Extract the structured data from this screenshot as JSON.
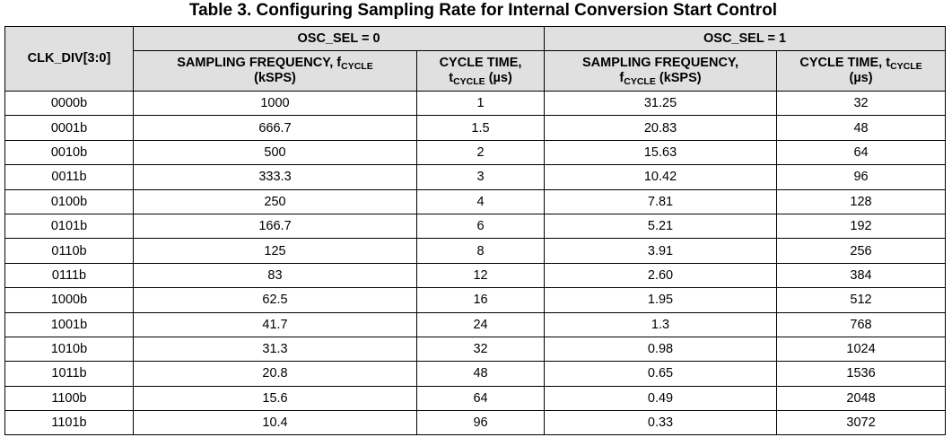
{
  "title": "Table 3. Configuring Sampling Rate for Internal Conversion Start Control",
  "headers": {
    "clk_div": "CLK_DIV[3:0]",
    "osc_sel_0": "OSC_SEL = 0",
    "osc_sel_1": "OSC_SEL = 1",
    "sub_cycle": "CYCLE",
    "osc0_freq_pre": "SAMPLING FREQUENCY, f",
    "osc0_freq_post": "(kSPS)",
    "osc0_time_pre": "CYCLE TIME,",
    "osc0_time_t": "t",
    "osc0_time_post": " (µs)",
    "osc1_freq_pre": "SAMPLING FREQUENCY,",
    "osc1_freq_f": "f",
    "osc1_freq_post": " (kSPS)",
    "osc1_time_pre": "CYCLE TIME, t",
    "osc1_time_post": "(µs)"
  },
  "rows": [
    {
      "clk": "0000b",
      "f0": "1000",
      "t0": "1",
      "f1": "31.25",
      "t1": "32"
    },
    {
      "clk": "0001b",
      "f0": "666.7",
      "t0": "1.5",
      "f1": "20.83",
      "t1": "48"
    },
    {
      "clk": "0010b",
      "f0": "500",
      "t0": "2",
      "f1": "15.63",
      "t1": "64"
    },
    {
      "clk": "0011b",
      "f0": "333.3",
      "t0": "3",
      "f1": "10.42",
      "t1": "96"
    },
    {
      "clk": "0100b",
      "f0": "250",
      "t0": "4",
      "f1": "7.81",
      "t1": "128"
    },
    {
      "clk": "0101b",
      "f0": "166.7",
      "t0": "6",
      "f1": "5.21",
      "t1": "192"
    },
    {
      "clk": "0110b",
      "f0": "125",
      "t0": "8",
      "f1": "3.91",
      "t1": "256"
    },
    {
      "clk": "0111b",
      "f0": "83",
      "t0": "12",
      "f1": "2.60",
      "t1": "384"
    },
    {
      "clk": "1000b",
      "f0": "62.5",
      "t0": "16",
      "f1": "1.95",
      "t1": "512"
    },
    {
      "clk": "1001b",
      "f0": "41.7",
      "t0": "24",
      "f1": "1.3",
      "t1": "768"
    },
    {
      "clk": "1010b",
      "f0": "31.3",
      "t0": "32",
      "f1": "0.98",
      "t1": "1024"
    },
    {
      "clk": "1011b",
      "f0": "20.8",
      "t0": "48",
      "f1": "0.65",
      "t1": "1536"
    },
    {
      "clk": "1100b",
      "f0": "15.6",
      "t0": "64",
      "f1": "0.49",
      "t1": "2048"
    },
    {
      "clk": "1101b",
      "f0": "10.4",
      "t0": "96",
      "f1": "0.33",
      "t1": "3072"
    }
  ]
}
